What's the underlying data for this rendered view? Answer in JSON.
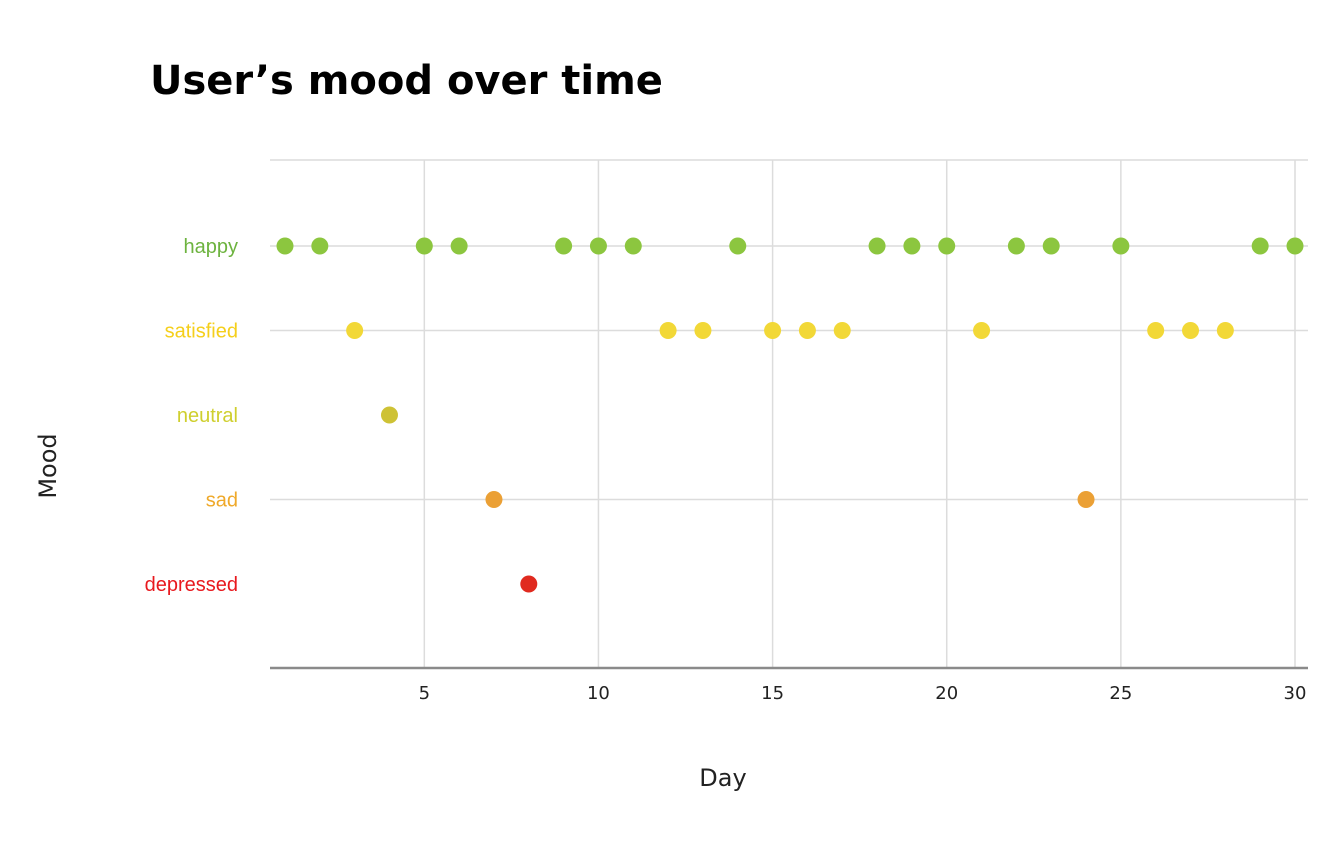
{
  "chart_data": {
    "type": "scatter",
    "title": "User’s mood over time",
    "xlabel": "Day",
    "ylabel": "Mood",
    "xlim": [
      1,
      30
    ],
    "xticks": [
      5,
      10,
      15,
      20,
      25,
      30
    ],
    "grid": true,
    "legend": "none",
    "categories": [
      {
        "key": "happy",
        "label": "happy",
        "label_color": "#6db33f",
        "point_color": "#8cc63f"
      },
      {
        "key": "satisfied",
        "label": "satisfied",
        "label_color": "#f5cf1b",
        "point_color": "#f2d837"
      },
      {
        "key": "neutral",
        "label": "neutral",
        "label_color": "#cfcf2e",
        "point_color": "#cec235"
      },
      {
        "key": "sad",
        "label": "sad",
        "label_color": "#efa92a",
        "point_color": "#eba035"
      },
      {
        "key": "depressed",
        "label": "depressed",
        "label_color": "#e8191e",
        "point_color": "#e02a1f"
      }
    ],
    "points": [
      {
        "x": 1,
        "y": "happy"
      },
      {
        "x": 2,
        "y": "happy"
      },
      {
        "x": 3,
        "y": "satisfied"
      },
      {
        "x": 4,
        "y": "neutral"
      },
      {
        "x": 5,
        "y": "happy"
      },
      {
        "x": 6,
        "y": "happy"
      },
      {
        "x": 7,
        "y": "sad"
      },
      {
        "x": 8,
        "y": "depressed"
      },
      {
        "x": 9,
        "y": "happy"
      },
      {
        "x": 10,
        "y": "happy"
      },
      {
        "x": 11,
        "y": "happy"
      },
      {
        "x": 12,
        "y": "satisfied"
      },
      {
        "x": 13,
        "y": "satisfied"
      },
      {
        "x": 14,
        "y": "happy"
      },
      {
        "x": 15,
        "y": "satisfied"
      },
      {
        "x": 16,
        "y": "satisfied"
      },
      {
        "x": 17,
        "y": "satisfied"
      },
      {
        "x": 18,
        "y": "happy"
      },
      {
        "x": 19,
        "y": "happy"
      },
      {
        "x": 20,
        "y": "happy"
      },
      {
        "x": 21,
        "y": "satisfied"
      },
      {
        "x": 22,
        "y": "happy"
      },
      {
        "x": 23,
        "y": "happy"
      },
      {
        "x": 24,
        "y": "sad"
      },
      {
        "x": 25,
        "y": "happy"
      },
      {
        "x": 26,
        "y": "satisfied"
      },
      {
        "x": 27,
        "y": "satisfied"
      },
      {
        "x": 28,
        "y": "satisfied"
      },
      {
        "x": 29,
        "y": "happy"
      },
      {
        "x": 30,
        "y": "happy"
      }
    ]
  }
}
